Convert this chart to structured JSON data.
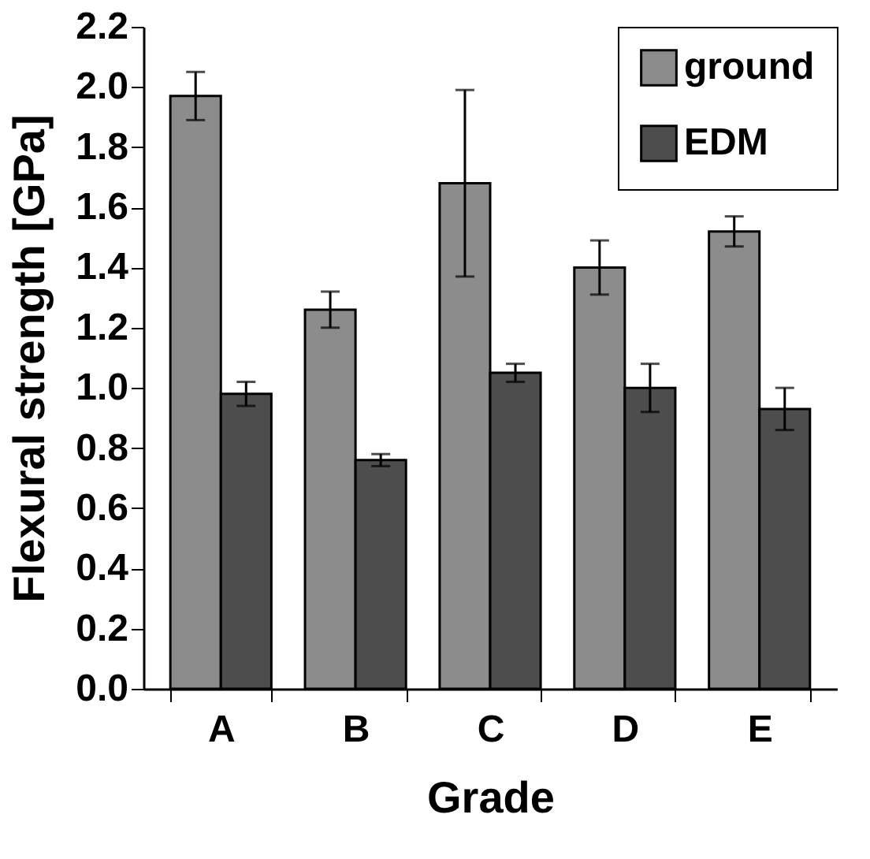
{
  "chart_data": {
    "type": "bar",
    "xlabel": "Grade",
    "ylabel": "Flexural strength  [GPa]",
    "categories": [
      "A",
      "B",
      "C",
      "D",
      "E"
    ],
    "series": [
      {
        "name": "ground",
        "color": "#8c8c8c",
        "values": [
          1.97,
          1.26,
          1.68,
          1.4,
          1.52
        ],
        "errors": [
          0.08,
          0.06,
          0.31,
          0.09,
          0.05
        ]
      },
      {
        "name": "EDM",
        "color": "#4d4d4d",
        "values": [
          0.98,
          0.76,
          1.05,
          1.0,
          0.93
        ],
        "errors": [
          0.04,
          0.02,
          0.03,
          0.08,
          0.07
        ]
      }
    ],
    "ylim": [
      0,
      2.2
    ],
    "yticks": [
      {
        "value": 0,
        "label": "0.0"
      },
      {
        "value": 0.2,
        "label": "0.2"
      },
      {
        "value": 0.4,
        "label": "0.4"
      },
      {
        "value": 0.6,
        "label": "0.6"
      },
      {
        "value": 0.8,
        "label": "0.8"
      },
      {
        "value": 1,
        "label": "1.0"
      },
      {
        "value": 1.2,
        "label": "1.2"
      },
      {
        "value": 1.4,
        "label": "1.4"
      },
      {
        "value": 1.6,
        "label": "1.6"
      },
      {
        "value": 1.8,
        "label": "1.8"
      },
      {
        "value": 2,
        "label": "2.0"
      },
      {
        "value": 2.2,
        "label": "2.2"
      }
    ],
    "grid": false,
    "legend": "top right"
  }
}
